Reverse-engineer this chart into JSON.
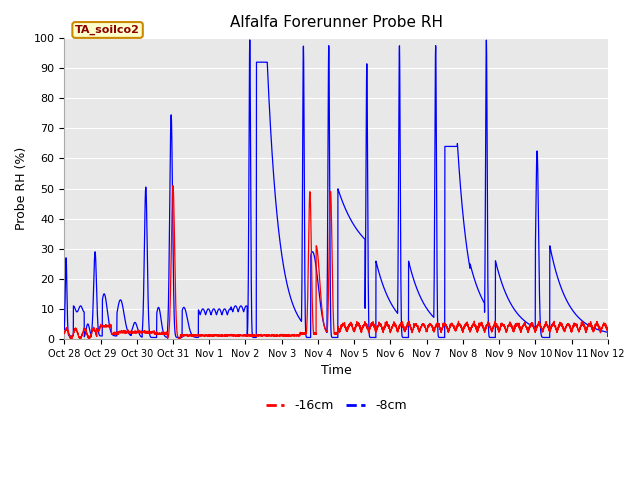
{
  "title": "Alfalfa Forerunner Probe RH",
  "ylabel": "Probe RH (%)",
  "xlabel": "Time",
  "ylim": [
    0,
    100
  ],
  "bg_color": "#e8e8e8",
  "grid_color": "white",
  "tag_label": "TA_soilco2",
  "line1_label": "-16cm",
  "line2_label": "-8cm",
  "line1_color": "red",
  "line2_color": "blue",
  "xtick_labels": [
    "Oct 28",
    "Oct 29",
    "Oct 30",
    "Oct 31",
    "Nov 1",
    "Nov 2",
    "Nov 3",
    "Nov 4",
    "Nov 5",
    "Nov 6",
    "Nov 7",
    "Nov 8",
    "Nov 9",
    "Nov 10",
    "Nov 11",
    "Nov 12"
  ],
  "ytick_labels": [
    0,
    10,
    20,
    30,
    40,
    50,
    60,
    70,
    80,
    90,
    100
  ],
  "figsize": [
    6.4,
    4.8
  ],
  "dpi": 100
}
